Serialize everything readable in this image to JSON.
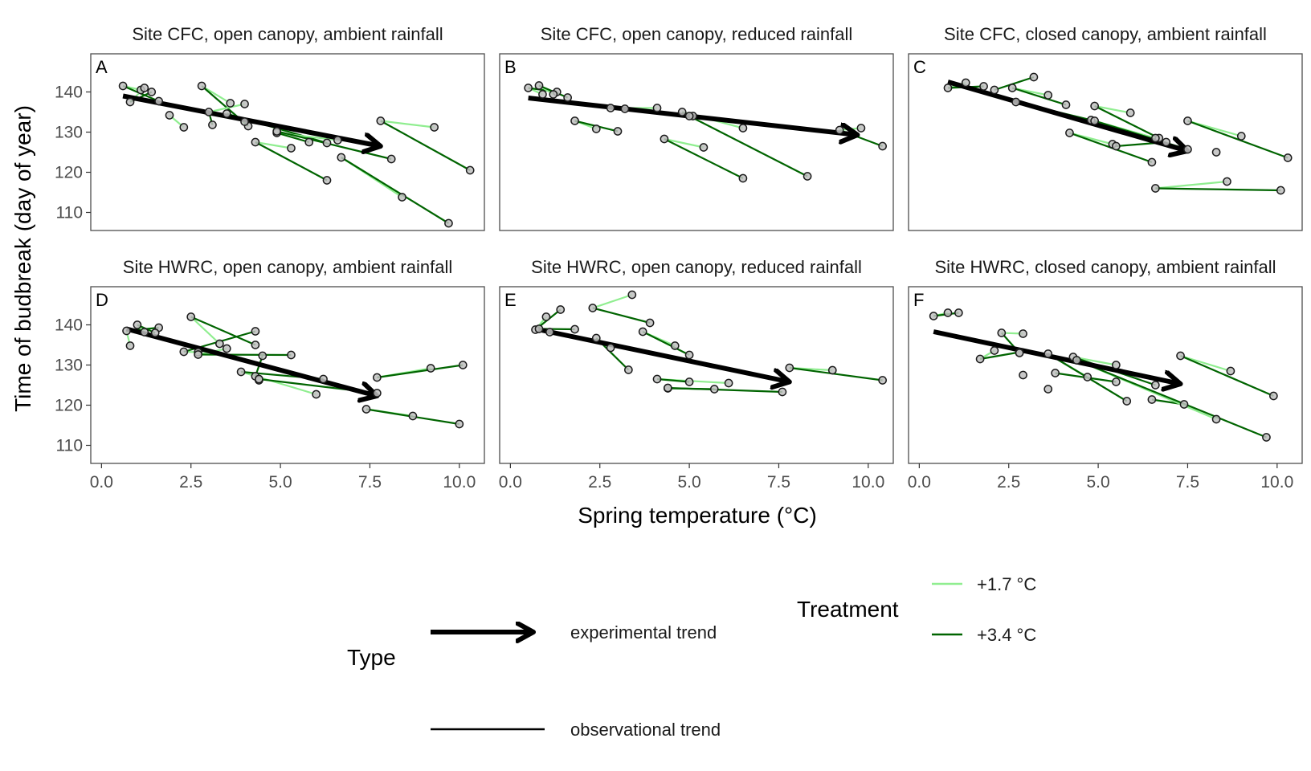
{
  "chart_data": {
    "type": "scatter",
    "xlabel": "Spring temperature (°C)",
    "ylabel": "Time of budbreak (day of year)",
    "xlim": [
      -0.3,
      10.7
    ],
    "ylim": [
      105.5,
      149.5
    ],
    "xticks": [
      "0.0",
      "2.5",
      "5.0",
      "7.5",
      "10.0"
    ],
    "xtick_values": [
      0,
      2.5,
      5,
      7.5,
      10
    ],
    "yticks": [
      "110",
      "120",
      "130",
      "140"
    ],
    "ytick_values": [
      110,
      120,
      130,
      140
    ],
    "grid": false,
    "colors": {
      "t17": "#90ee90",
      "t34": "#006400",
      "trend": "#000000",
      "point_fill": "#bfbfbf",
      "panel_border": "#4d4d4d"
    },
    "legend": {
      "type_title": "Type",
      "type_items": [
        "experimental trend",
        "observational trend"
      ],
      "treatment_title": "Treatment",
      "treatment_items": [
        "+1.7 °C",
        "+3.4 °C"
      ],
      "placement": "bottom"
    },
    "panels": [
      {
        "letter": "A",
        "title": "Site CFC, open canopy, ambient rainfall",
        "arrow": [
          [
            0.6,
            139
          ],
          [
            7.8,
            126.5
          ]
        ],
        "groups": [
          {
            "a": [
              0.6,
              141.5
            ],
            "b": [
              1.1,
              140.5
            ],
            "c": [
              1.6,
              137.7
            ]
          },
          {
            "a": [
              0.8,
              137.5
            ],
            "b": [
              1.2,
              141.0
            ],
            "c": [
              1.4,
              140.0
            ]
          },
          {
            "a": [
              1.9,
              134.2
            ],
            "b": [
              2.3,
              131.2
            ],
            "c": null
          },
          {
            "a": [
              2.8,
              141.5
            ],
            "b": [
              3.6,
              137.2
            ],
            "c": [
              4.1,
              131.5
            ]
          },
          {
            "a": [
              3.0,
              135.0
            ],
            "b": [
              4.0,
              137.0
            ],
            "c": [
              3.1,
              131.8
            ]
          },
          {
            "a": [
              3.5,
              134.6
            ],
            "b": [
              4.0,
              132.6
            ],
            "c": [
              6.3,
              127.3
            ]
          },
          {
            "a": [
              4.3,
              127.5
            ],
            "b": [
              5.3,
              126.0
            ],
            "c": [
              6.3,
              118.0
            ]
          },
          {
            "a": [
              4.9,
              129.8
            ],
            "b": [
              6.6,
              128.0
            ],
            "c": [
              5.8,
              127.5
            ]
          },
          {
            "a": [
              4.9,
              130.2
            ],
            "b": null,
            "c": [
              8.1,
              123.3
            ]
          },
          {
            "a": [
              6.7,
              123.7
            ],
            "b": [
              8.4,
              113.8
            ],
            "c": [
              9.7,
              107.3
            ]
          },
          {
            "a": [
              7.8,
              132.8
            ],
            "b": [
              9.3,
              131.2
            ],
            "c": [
              10.3,
              120.5
            ]
          }
        ]
      },
      {
        "letter": "B",
        "title": "Site CFC, open canopy, reduced rainfall",
        "arrow": [
          [
            0.5,
            138.5
          ],
          [
            9.7,
            129.3
          ]
        ],
        "groups": [
          {
            "a": [
              0.5,
              141.0
            ],
            "b": [
              0.9,
              139.4
            ],
            "c": [
              1.3,
              140.0
            ]
          },
          {
            "a": [
              0.8,
              141.6
            ],
            "b": [
              1.2,
              139.4
            ],
            "c": [
              1.6,
              138.6
            ]
          },
          {
            "a": [
              1.8,
              132.8
            ],
            "b": [
              2.4,
              130.8
            ],
            "c": [
              3.0,
              130.2
            ]
          },
          {
            "a": [
              2.8,
              136.0
            ],
            "b": [
              4.1,
              136.0
            ],
            "c": [
              3.2,
              135.8
            ]
          },
          {
            "a": [
              4.8,
              135.0
            ],
            "b": [
              6.5,
              131.0
            ],
            "c": [
              5.1,
              134.0
            ]
          },
          {
            "a": [
              4.3,
              128.3
            ],
            "b": [
              5.4,
              126.2
            ],
            "c": [
              6.5,
              118.5
            ]
          },
          {
            "a": [
              5.0,
              134.0
            ],
            "b": null,
            "c": [
              8.3,
              119.0
            ]
          },
          {
            "a": [
              9.2,
              130.5
            ],
            "b": [
              9.8,
              131.0
            ],
            "c": [
              10.4,
              126.5
            ]
          }
        ]
      },
      {
        "letter": "C",
        "title": "Site CFC, closed canopy, ambient rainfall",
        "arrow": [
          [
            0.8,
            142.5
          ],
          [
            7.5,
            125.3
          ]
        ],
        "groups": [
          {
            "a": [
              0.8,
              141.0
            ],
            "b": [
              1.3,
              142.3
            ],
            "c": [
              1.8,
              141.4
            ]
          },
          {
            "a": [
              2.1,
              140.5
            ],
            "b": null,
            "c": [
              3.2,
              143.7
            ]
          },
          {
            "a": [
              2.6,
              141.0
            ],
            "b": [
              3.6,
              139.2
            ],
            "c": [
              4.1,
              136.8
            ]
          },
          {
            "a": [
              2.7,
              137.5
            ],
            "b": null,
            "c": [
              4.8,
              133.0
            ]
          },
          {
            "a": [
              4.9,
              136.5
            ],
            "b": [
              5.9,
              134.8
            ],
            "c": [
              6.7,
              128.5
            ]
          },
          {
            "a": [
              4.9,
              132.8
            ],
            "b": [
              6.6,
              128.5
            ],
            "c": [
              7.5,
              125.7
            ]
          },
          {
            "a": [
              4.2,
              129.8
            ],
            "b": [
              5.4,
              127.0
            ],
            "c": [
              6.5,
              122.5
            ]
          },
          {
            "a": [
              6.9,
              127.5
            ],
            "b": null,
            "c": [
              5.5,
              126.5
            ]
          },
          {
            "a": [
              7.5,
              132.8
            ],
            "b": [
              9.0,
              129.0
            ],
            "c": [
              10.3,
              123.6
            ]
          },
          {
            "a": null,
            "b": null,
            "c": [
              8.3,
              125.0
            ]
          },
          {
            "a": [
              6.6,
              116.0
            ],
            "b": [
              8.6,
              117.7
            ],
            "c": [
              10.1,
              115.5
            ]
          }
        ]
      },
      {
        "letter": "D",
        "title": "Site HWRC, open canopy, ambient rainfall",
        "arrow": [
          [
            0.7,
            139.0
          ],
          [
            7.7,
            122.3
          ]
        ],
        "groups": [
          {
            "a": [
              0.7,
              138.5
            ],
            "b": [
              0.8,
              134.8
            ],
            "c": [
              1.6,
              139.3
            ]
          },
          {
            "a": [
              1.0,
              140.0
            ],
            "b": [
              1.2,
              138.2
            ],
            "c": [
              1.5,
              138.0
            ]
          },
          {
            "a": [
              2.3,
              133.3
            ],
            "b": [
              2.7,
              133.2
            ],
            "c": [
              4.3,
              138.4
            ]
          },
          {
            "a": [
              2.5,
              142.0
            ],
            "b": [
              3.3,
              135.3
            ],
            "c": [
              4.3,
              135.0
            ]
          },
          {
            "a": [
              2.7,
              132.6
            ],
            "b": [
              3.5,
              134.1
            ],
            "c": [
              5.3,
              132.5
            ]
          },
          {
            "a": [
              3.9,
              128.3
            ],
            "b": [
              6.0,
              122.7
            ],
            "c": [
              6.2,
              126.5
            ]
          },
          {
            "a": [
              4.3,
              127.2
            ],
            "b": [
              4.4,
              126.2
            ],
            "c": [
              4.5,
              132.3
            ]
          },
          {
            "a": [
              4.4,
              126.5
            ],
            "b": null,
            "c": [
              7.7,
              123.0
            ]
          },
          {
            "a": [
              7.7,
              126.9
            ],
            "b": [
              9.2,
              129.2
            ],
            "c": [
              10.1,
              130.0
            ]
          },
          {
            "a": [
              7.4,
              119.0
            ],
            "b": [
              8.7,
              117.3
            ],
            "c": [
              10.0,
              115.3
            ]
          }
        ]
      },
      {
        "letter": "E",
        "title": "Site HWRC, open canopy, reduced rainfall",
        "arrow": [
          [
            0.7,
            139.0
          ],
          [
            7.8,
            125.8
          ]
        ],
        "groups": [
          {
            "a": [
              0.7,
              138.8
            ],
            "b": [
              1.0,
              142.0
            ],
            "c": [
              1.4,
              143.8
            ]
          },
          {
            "a": [
              0.8,
              139.0
            ],
            "b": [
              1.1,
              138.2
            ],
            "c": [
              1.8,
              138.9
            ]
          },
          {
            "a": [
              2.3,
              144.2
            ],
            "b": [
              3.4,
              147.5
            ],
            "c": [
              3.9,
              140.5
            ]
          },
          {
            "a": [
              2.4,
              136.7
            ],
            "b": [
              2.8,
              134.3
            ],
            "c": [
              3.3,
              128.8
            ]
          },
          {
            "a": [
              3.7,
              138.3
            ],
            "b": [
              4.6,
              134.8
            ],
            "c": [
              5.0,
              132.5
            ]
          },
          {
            "a": [
              4.1,
              126.5
            ],
            "b": [
              6.1,
              125.5
            ],
            "c": [
              5.0,
              125.8
            ]
          },
          {
            "a": [
              4.4,
              124.2
            ],
            "b": null,
            "c": [
              5.7,
              124.0
            ]
          },
          {
            "a": [
              4.4,
              124.3
            ],
            "b": null,
            "c": [
              7.6,
              123.3
            ]
          },
          {
            "a": [
              7.8,
              129.3
            ],
            "b": [
              9.0,
              128.7
            ],
            "c": [
              10.4,
              126.2
            ]
          }
        ]
      },
      {
        "letter": "F",
        "title": "Site HWRC, closed canopy, ambient rainfall",
        "arrow": [
          [
            0.4,
            138.3
          ],
          [
            7.3,
            125.3
          ]
        ],
        "groups": [
          {
            "a": [
              0.4,
              142.2
            ],
            "b": [
              0.8,
              143.0
            ],
            "c": [
              1.1,
              143.0
            ]
          },
          {
            "a": [
              1.7,
              131.5
            ],
            "b": [
              2.1,
              133.6
            ],
            "c": [
              2.8,
              133.2
            ]
          },
          {
            "a": [
              2.3,
              138.0
            ],
            "b": [
              2.9,
              137.8
            ],
            "c": [
              2.8,
              133.0
            ]
          },
          {
            "a": null,
            "b": [
              2.9,
              127.5
            ],
            "c": null
          },
          {
            "a": null,
            "b": [
              3.6,
              124.0
            ],
            "c": null
          },
          {
            "a": [
              3.6,
              132.8
            ],
            "b": [
              4.7,
              127.0
            ],
            "c": [
              5.8,
              121.0
            ]
          },
          {
            "a": [
              3.8,
              128.0
            ],
            "b": null,
            "c": [
              5.5,
              125.8
            ]
          },
          {
            "a": [
              4.3,
              132.0
            ],
            "b": [
              5.5,
              130.0
            ],
            "c": [
              6.6,
              125.0
            ]
          },
          {
            "a": [
              6.5,
              121.4
            ],
            "b": null,
            "c": [
              7.4,
              120.2
            ]
          },
          {
            "a": [
              4.4,
              131.2
            ],
            "b": [
              8.3,
              116.5
            ],
            "c": [
              9.7,
              112.0
            ]
          },
          {
            "a": [
              7.3,
              132.3
            ],
            "b": [
              8.7,
              128.5
            ],
            "c": [
              9.9,
              122.3
            ]
          }
        ]
      }
    ]
  }
}
